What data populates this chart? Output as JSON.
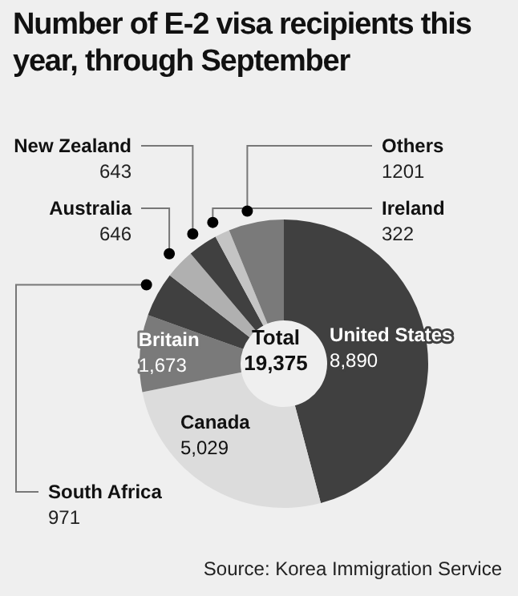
{
  "chart_data": {
    "type": "donut",
    "title": "Number of E-2 visa recipients this year, through September",
    "categories": [
      "United States",
      "Canada",
      "Britain",
      "South Africa",
      "Australia",
      "New Zealand",
      "Ireland",
      "Others"
    ],
    "values": [
      8890,
      5029,
      1673,
      971,
      646,
      643,
      322,
      1201
    ],
    "value_labels": [
      "8,890",
      "5,029",
      "1,673",
      "971",
      "646",
      "643",
      "322",
      "1201"
    ],
    "colors": [
      "#404040",
      "#dcdcdc",
      "#7a7a7a",
      "#404040",
      "#b0b0b0",
      "#404040",
      "#c4c4c4",
      "#7a7a7a"
    ],
    "annotations": [
      "Total 19,375",
      "Source: Korea Immigration Service"
    ],
    "legend": false
  }
}
